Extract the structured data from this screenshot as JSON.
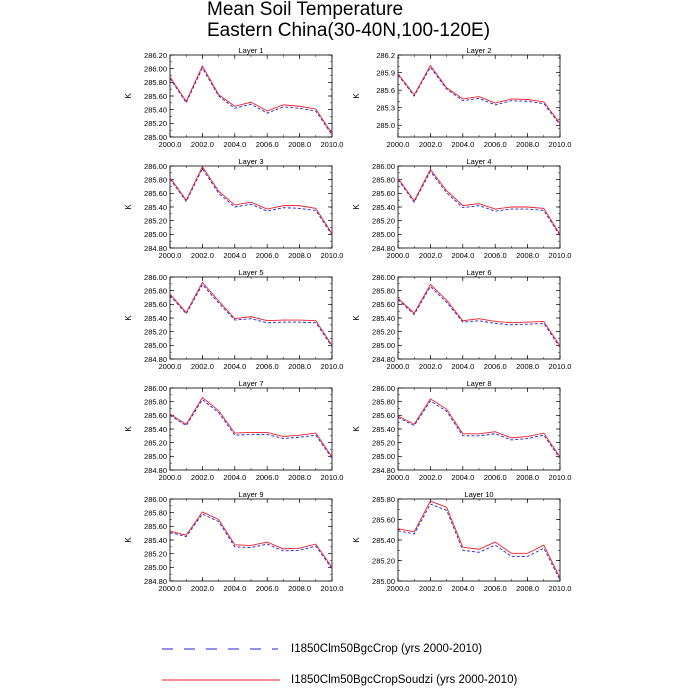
{
  "title_lines": [
    "Mean Soil Temperature",
    "Eastern China(30-40N,100-120E)"
  ],
  "colors": {
    "series_1": "#2323d9",
    "series_2": "#ee1f2a",
    "axis": "#000000"
  },
  "legend": [
    {
      "label": "I1850Clm50BgcCrop (yrs 2000-2010)",
      "style": "dashed",
      "color": "#2323d9"
    },
    {
      "label": "I1850Clm50BgcCropSoudzi (yrs 2000-2010)",
      "style": "solid",
      "color": "#ee1f2a"
    }
  ],
  "chart_data": [
    {
      "type": "line",
      "title": "Layer 1",
      "ylabel": "K",
      "x": [
        2000,
        2001,
        2002,
        2003,
        2004,
        2005,
        2006,
        2007,
        2008,
        2009,
        2010
      ],
      "xlim": [
        2000,
        2010
      ],
      "xticks": [
        "2000.0",
        "2002.0",
        "2004.0",
        "2006.0",
        "2008.0",
        "2010.0"
      ],
      "ylim": [
        285.0,
        286.2
      ],
      "yticks": [
        "285.00",
        "285.20",
        "285.40",
        "285.60",
        "285.80",
        "286.00",
        "286.20"
      ],
      "series": [
        {
          "values": [
            285.86,
            285.5,
            286.01,
            285.6,
            285.42,
            285.48,
            285.35,
            285.44,
            285.42,
            285.38,
            285.03
          ]
        },
        {
          "values": [
            285.88,
            285.52,
            286.04,
            285.62,
            285.45,
            285.51,
            285.38,
            285.47,
            285.45,
            285.41,
            285.05
          ]
        }
      ]
    },
    {
      "type": "line",
      "title": "Layer 2",
      "ylabel": "K",
      "x": [
        2000,
        2001,
        2002,
        2003,
        2004,
        2005,
        2006,
        2007,
        2008,
        2009,
        2010
      ],
      "xlim": [
        2000,
        2010
      ],
      "xticks": [
        "2000.0",
        "2002.0",
        "2004.0",
        "2006.0",
        "2008.0",
        "2010.0"
      ],
      "ylim": [
        284.8,
        286.2
      ],
      "yticks": [
        "285.0",
        "285.3",
        "285.6",
        "285.9",
        "286.2"
      ],
      "series": [
        {
          "values": [
            285.86,
            285.5,
            285.99,
            285.62,
            285.42,
            285.46,
            285.35,
            285.42,
            285.41,
            285.37,
            285.01
          ]
        },
        {
          "values": [
            285.88,
            285.52,
            286.02,
            285.64,
            285.45,
            285.49,
            285.38,
            285.45,
            285.44,
            285.4,
            285.03
          ]
        }
      ]
    },
    {
      "type": "line",
      "title": "Layer 3",
      "ylabel": "K",
      "x": [
        2000,
        2001,
        2002,
        2003,
        2004,
        2005,
        2006,
        2007,
        2008,
        2009,
        2010
      ],
      "xlim": [
        2000,
        2010
      ],
      "xticks": [
        "2000.0",
        "2002.0",
        "2004.0",
        "2006.0",
        "2008.0",
        "2010.0"
      ],
      "ylim": [
        284.8,
        286.0
      ],
      "yticks": [
        "284.80",
        "285.00",
        "285.20",
        "285.40",
        "285.60",
        "285.80",
        "286.00"
      ],
      "series": [
        {
          "values": [
            285.81,
            285.48,
            285.96,
            285.6,
            285.4,
            285.44,
            285.34,
            285.39,
            285.38,
            285.35,
            284.99
          ]
        },
        {
          "values": [
            285.83,
            285.5,
            285.99,
            285.63,
            285.43,
            285.47,
            285.37,
            285.42,
            285.42,
            285.38,
            285.01
          ]
        }
      ]
    },
    {
      "type": "line",
      "title": "Layer 4",
      "ylabel": "K",
      "x": [
        2000,
        2001,
        2002,
        2003,
        2004,
        2005,
        2006,
        2007,
        2008,
        2009,
        2010
      ],
      "xlim": [
        2000,
        2010
      ],
      "xticks": [
        "2000.0",
        "2002.0",
        "2004.0",
        "2006.0",
        "2008.0",
        "2010.0"
      ],
      "ylim": [
        284.8,
        286.0
      ],
      "yticks": [
        "284.80",
        "285.00",
        "285.20",
        "285.40",
        "285.60",
        "285.80",
        "286.00"
      ],
      "series": [
        {
          "values": [
            285.8,
            285.47,
            285.92,
            285.61,
            285.39,
            285.42,
            285.34,
            285.37,
            285.37,
            285.35,
            284.98
          ]
        },
        {
          "values": [
            285.82,
            285.49,
            285.95,
            285.64,
            285.42,
            285.45,
            285.37,
            285.4,
            285.4,
            285.38,
            285.0
          ]
        }
      ]
    },
    {
      "type": "line",
      "title": "Layer 5",
      "ylabel": "K",
      "x": [
        2000,
        2001,
        2002,
        2003,
        2004,
        2005,
        2006,
        2007,
        2008,
        2009,
        2010
      ],
      "xlim": [
        2000,
        2010
      ],
      "xticks": [
        "2000.0",
        "2002.0",
        "2004.0",
        "2006.0",
        "2008.0",
        "2010.0"
      ],
      "ylim": [
        284.8,
        286.0
      ],
      "yticks": [
        "284.80",
        "285.00",
        "285.20",
        "285.40",
        "285.60",
        "285.80",
        "286.00"
      ],
      "series": [
        {
          "values": [
            285.73,
            285.46,
            285.89,
            285.62,
            285.37,
            285.39,
            285.33,
            285.34,
            285.34,
            285.33,
            284.98
          ]
        },
        {
          "values": [
            285.75,
            285.48,
            285.92,
            285.65,
            285.39,
            285.42,
            285.36,
            285.37,
            285.37,
            285.36,
            285.0
          ]
        }
      ]
    },
    {
      "type": "line",
      "title": "Layer 6",
      "ylabel": "K",
      "x": [
        2000,
        2001,
        2002,
        2003,
        2004,
        2005,
        2006,
        2007,
        2008,
        2009,
        2010
      ],
      "xlim": [
        2000,
        2010
      ],
      "xticks": [
        "2000.0",
        "2002.0",
        "2004.0",
        "2006.0",
        "2008.0",
        "2010.0"
      ],
      "ylim": [
        284.8,
        286.0
      ],
      "yticks": [
        "284.80",
        "285.00",
        "285.20",
        "285.40",
        "285.60",
        "285.80",
        "286.00"
      ],
      "series": [
        {
          "values": [
            285.67,
            285.45,
            285.86,
            285.63,
            285.34,
            285.36,
            285.32,
            285.3,
            285.31,
            285.32,
            284.97
          ]
        },
        {
          "values": [
            285.69,
            285.47,
            285.89,
            285.66,
            285.36,
            285.39,
            285.35,
            285.33,
            285.34,
            285.35,
            284.99
          ]
        }
      ]
    },
    {
      "type": "line",
      "title": "Layer 7",
      "ylabel": "K",
      "x": [
        2000,
        2001,
        2002,
        2003,
        2004,
        2005,
        2006,
        2007,
        2008,
        2009,
        2010
      ],
      "xlim": [
        2000,
        2010
      ],
      "xticks": [
        "2000.0",
        "2002.0",
        "2004.0",
        "2006.0",
        "2008.0",
        "2010.0"
      ],
      "ylim": [
        284.8,
        286.0
      ],
      "yticks": [
        "284.80",
        "285.00",
        "285.20",
        "285.40",
        "285.60",
        "285.80",
        "286.00"
      ],
      "series": [
        {
          "values": [
            285.6,
            285.45,
            285.83,
            285.64,
            285.31,
            285.32,
            285.32,
            285.26,
            285.28,
            285.31,
            284.97
          ]
        },
        {
          "values": [
            285.62,
            285.47,
            285.86,
            285.67,
            285.34,
            285.35,
            285.35,
            285.29,
            285.31,
            285.34,
            284.99
          ]
        }
      ]
    },
    {
      "type": "line",
      "title": "Layer 8",
      "ylabel": "K",
      "x": [
        2000,
        2001,
        2002,
        2003,
        2004,
        2005,
        2006,
        2007,
        2008,
        2009,
        2010
      ],
      "xlim": [
        2000,
        2010
      ],
      "xticks": [
        "2000.0",
        "2002.0",
        "2004.0",
        "2006.0",
        "2008.0",
        "2010.0"
      ],
      "ylim": [
        284.8,
        286.0
      ],
      "yticks": [
        "284.80",
        "285.00",
        "285.20",
        "285.40",
        "285.60",
        "285.80",
        "286.00"
      ],
      "series": [
        {
          "values": [
            285.57,
            285.45,
            285.81,
            285.66,
            285.3,
            285.3,
            285.33,
            285.24,
            285.26,
            285.31,
            284.97
          ]
        },
        {
          "values": [
            285.59,
            285.47,
            285.84,
            285.69,
            285.33,
            285.33,
            285.36,
            285.27,
            285.29,
            285.34,
            284.99
          ]
        }
      ]
    },
    {
      "type": "line",
      "title": "Layer 9",
      "ylabel": "K",
      "x": [
        2000,
        2001,
        2002,
        2003,
        2004,
        2005,
        2006,
        2007,
        2008,
        2009,
        2010
      ],
      "xlim": [
        2000,
        2010
      ],
      "xticks": [
        "2000.0",
        "2002.0",
        "2004.0",
        "2006.0",
        "2008.0",
        "2010.0"
      ],
      "ylim": [
        284.8,
        286.0
      ],
      "yticks": [
        "284.80",
        "285.00",
        "285.20",
        "285.40",
        "285.60",
        "285.80",
        "286.00"
      ],
      "series": [
        {
          "values": [
            285.51,
            285.45,
            285.78,
            285.67,
            285.3,
            285.29,
            285.34,
            285.24,
            285.25,
            285.31,
            284.98
          ]
        },
        {
          "values": [
            285.53,
            285.47,
            285.81,
            285.7,
            285.33,
            285.32,
            285.37,
            285.27,
            285.28,
            285.34,
            285.0
          ]
        }
      ]
    },
    {
      "type": "line",
      "title": "Layer 10",
      "ylabel": "K",
      "x": [
        2000,
        2001,
        2002,
        2003,
        2004,
        2005,
        2006,
        2007,
        2008,
        2009,
        2010
      ],
      "xlim": [
        2000,
        2010
      ],
      "xticks": [
        "2000.0",
        "2002.0",
        "2004.0",
        "2006.0",
        "2008.0",
        "2010.0"
      ],
      "ylim": [
        285.0,
        285.8
      ],
      "yticks": [
        "285.00",
        "285.20",
        "285.40",
        "285.60",
        "285.80"
      ],
      "series": [
        {
          "values": [
            285.49,
            285.46,
            285.75,
            285.69,
            285.3,
            285.28,
            285.35,
            285.24,
            285.24,
            285.32,
            285.01
          ]
        },
        {
          "values": [
            285.51,
            285.48,
            285.78,
            285.72,
            285.33,
            285.31,
            285.38,
            285.27,
            285.27,
            285.35,
            285.03
          ]
        }
      ]
    }
  ]
}
